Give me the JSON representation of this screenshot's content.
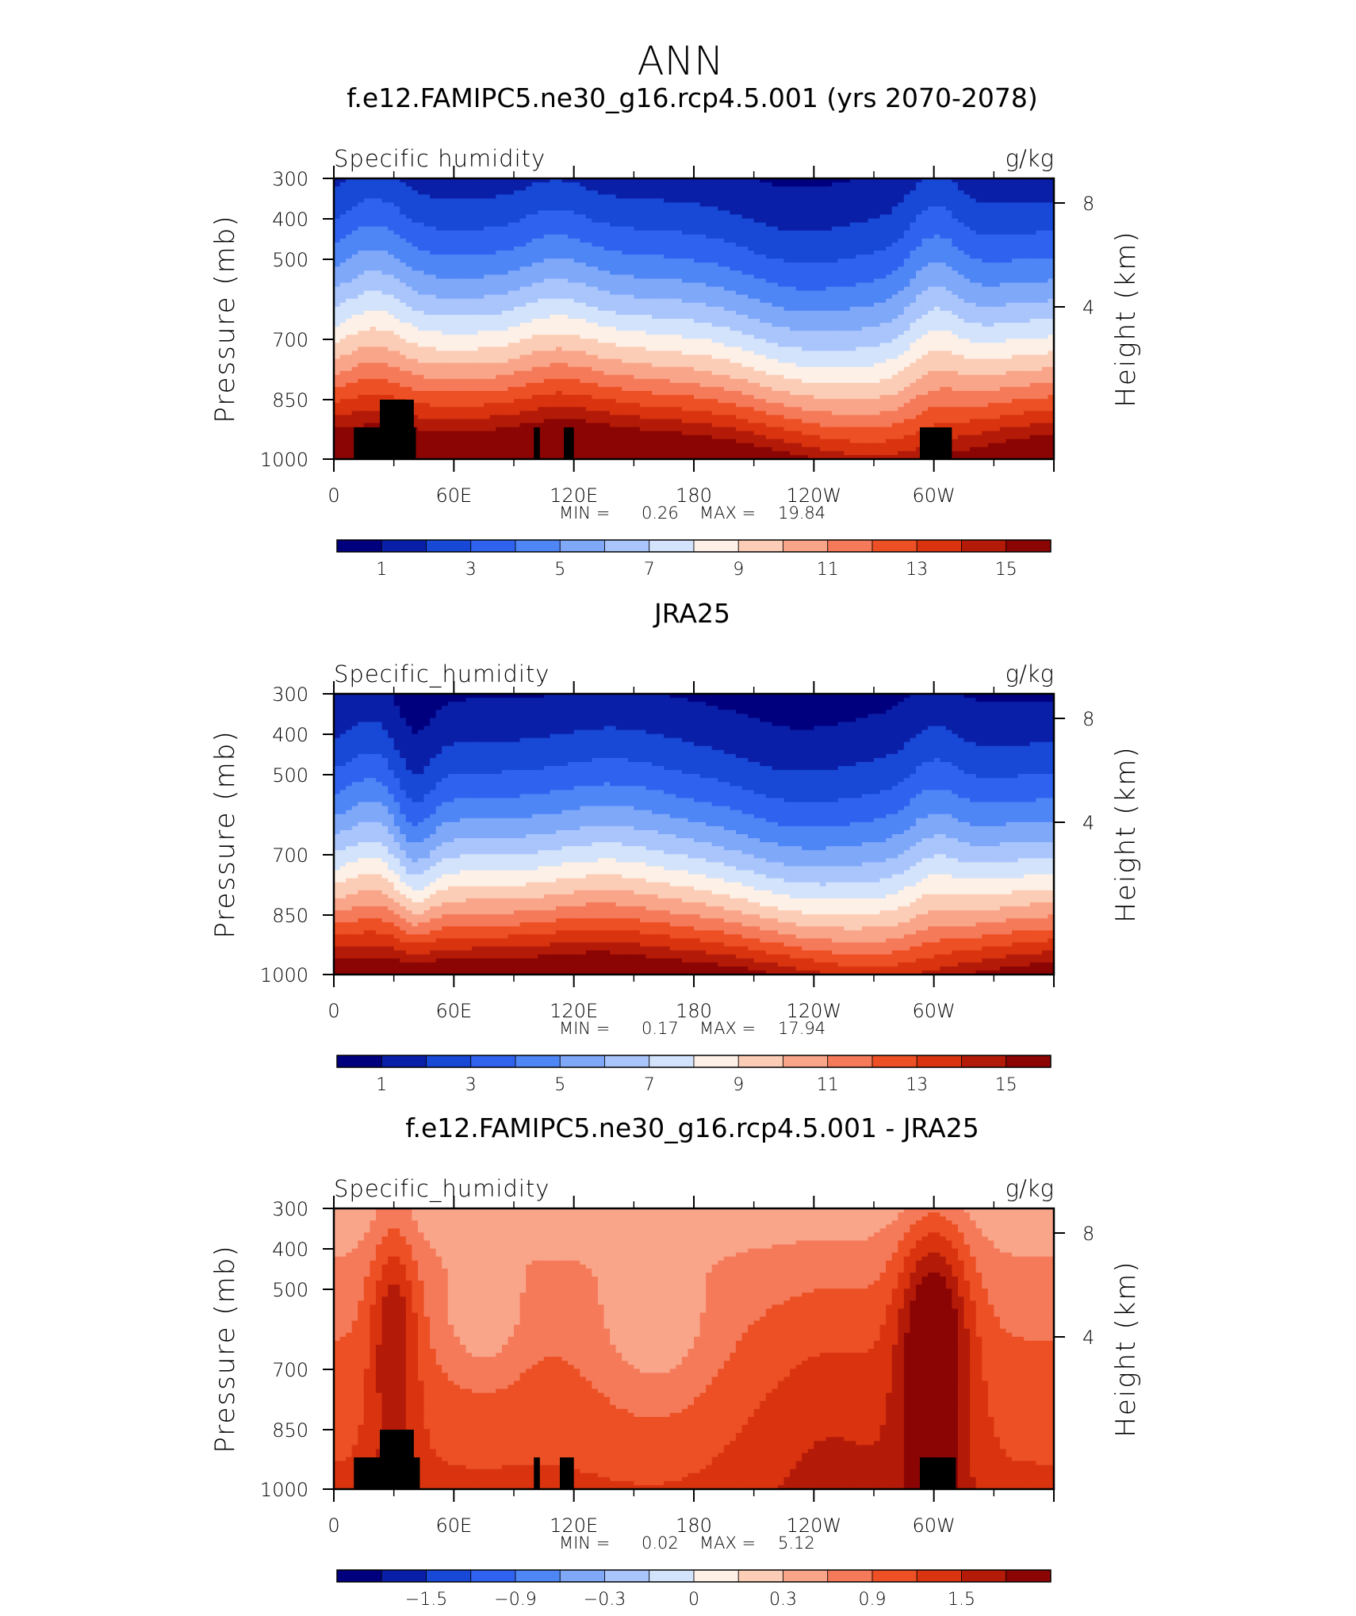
{
  "figure": {
    "title": "ANN"
  },
  "colorbar_colors": [
    "#00007f",
    "#0a1fa8",
    "#1848d6",
    "#2f63ef",
    "#4f86f6",
    "#7fa8f9",
    "#a9c5fb",
    "#d3e3fc",
    "#fdf0e6",
    "#fccdb6",
    "#f9a58a",
    "#f57a5a",
    "#ec5024",
    "#d9340f",
    "#b41a08",
    "#8b0505"
  ],
  "chart_data": [
    {
      "type": "heatmap",
      "title": "f.e12.FAMIPC5.ne30_g16.rcp4.5.001 (yrs 2070-2078)",
      "left_label": "Specific humidity",
      "units": "g/kg",
      "ylabel": "Pressure (mb)",
      "ylabel_right": "Height (km)",
      "x_ticks": [
        "0",
        "60E",
        "120E",
        "180",
        "120W",
        "60W"
      ],
      "y_ticks": [
        "300",
        "400",
        "500",
        "700",
        "850",
        "1000"
      ],
      "y_right_ticks": [
        "8",
        "4"
      ],
      "min_label": "MIN =",
      "min_value": "0.26",
      "max_label": "MAX =",
      "max_value": "19.84",
      "colorbar_labels": [
        "1",
        "3",
        "5",
        "7",
        "9",
        "11",
        "13",
        "15"
      ],
      "levels": [
        1,
        2,
        3,
        4,
        5,
        6,
        7,
        8,
        9,
        10,
        11,
        12,
        13,
        14,
        15
      ]
    },
    {
      "type": "heatmap",
      "title": "JRA25",
      "left_label": "Specific_humidity",
      "units": "g/kg",
      "ylabel": "Pressure (mb)",
      "ylabel_right": "Height (km)",
      "x_ticks": [
        "0",
        "60E",
        "120E",
        "180",
        "120W",
        "60W"
      ],
      "y_ticks": [
        "300",
        "400",
        "500",
        "700",
        "850",
        "1000"
      ],
      "y_right_ticks": [
        "8",
        "4"
      ],
      "min_label": "MIN =",
      "min_value": "0.17",
      "max_label": "MAX =",
      "max_value": "17.94",
      "colorbar_labels": [
        "1",
        "3",
        "5",
        "7",
        "9",
        "11",
        "13",
        "15"
      ],
      "levels": [
        1,
        2,
        3,
        4,
        5,
        6,
        7,
        8,
        9,
        10,
        11,
        12,
        13,
        14,
        15
      ]
    },
    {
      "type": "heatmap",
      "title": "f.e12.FAMIPC5.ne30_g16.rcp4.5.001 - JRA25",
      "left_label": "Specific_humidity",
      "units": "g/kg",
      "ylabel": "Pressure (mb)",
      "ylabel_right": "Height (km)",
      "x_ticks": [
        "0",
        "60E",
        "120E",
        "180",
        "120W",
        "60W"
      ],
      "y_ticks": [
        "300",
        "400",
        "500",
        "700",
        "850",
        "1000"
      ],
      "y_right_ticks": [
        "8",
        "4"
      ],
      "min_label": "MIN =",
      "min_value": "0.02",
      "max_label": "MAX =",
      "max_value": "5.12",
      "colorbar_labels": [
        "−1.5",
        "−0.9",
        "−0.3",
        "0",
        "0.3",
        "0.9",
        "1.5"
      ],
      "levels": [
        -1.8,
        -1.5,
        -1.2,
        -0.9,
        -0.6,
        -0.3,
        -0.1,
        0,
        0.1,
        0.3,
        0.6,
        0.9,
        1.2,
        1.5,
        1.8
      ]
    }
  ]
}
